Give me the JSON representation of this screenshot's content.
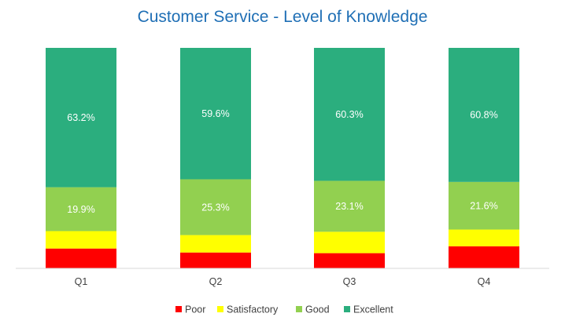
{
  "chart_data": {
    "type": "bar",
    "stacked": true,
    "title": "Customer Service - Level of Knowledge",
    "categories": [
      "Q1",
      "Q2",
      "Q3",
      "Q4"
    ],
    "series": [
      {
        "name": "Poor",
        "color": "#ff0000",
        "values": [
          9.0,
          7.2,
          6.9,
          10.0
        ]
      },
      {
        "name": "Satisfactory",
        "color": "#ffff00",
        "values": [
          7.9,
          7.9,
          9.7,
          7.6
        ]
      },
      {
        "name": "Good",
        "color": "#92d050",
        "values": [
          19.9,
          25.3,
          23.1,
          21.6
        ]
      },
      {
        "name": "Excellent",
        "color": "#2bae7e",
        "values": [
          63.2,
          59.6,
          60.3,
          60.8
        ]
      }
    ],
    "data_labels": {
      "Good": [
        "19.9%",
        "25.3%",
        "23.1%",
        "21.6%"
      ],
      "Excellent": [
        "63.2%",
        "59.6%",
        "60.3%",
        "60.8%"
      ]
    },
    "ylim": [
      0,
      100
    ],
    "grid": false,
    "legend_position": "bottom"
  }
}
